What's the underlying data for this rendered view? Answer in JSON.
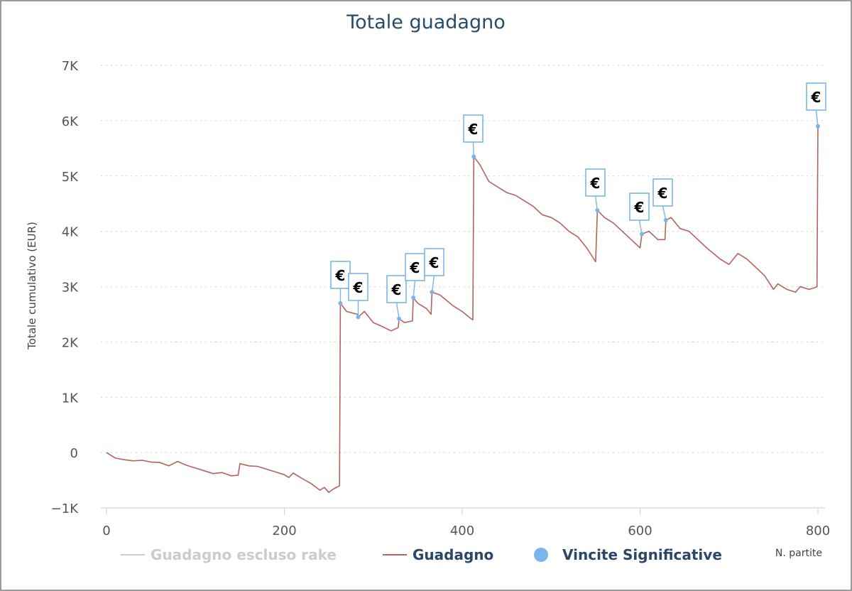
{
  "chart_data": {
    "type": "line",
    "title": "Totale guadagno",
    "xlabel": "N. partite",
    "ylabel": "Totale cumulativo (EUR)",
    "xlim": [
      0,
      800
    ],
    "ylim": [
      -1000,
      7000
    ],
    "x_ticks": [
      0,
      200,
      400,
      600,
      800
    ],
    "x_tick_labels": [
      "0",
      "200",
      "400",
      "600",
      "800"
    ],
    "y_ticks": [
      -1000,
      0,
      1000,
      2000,
      3000,
      4000,
      5000,
      6000,
      7000
    ],
    "y_tick_labels": [
      "−1K",
      "0",
      "1K",
      "2K",
      "3K",
      "4K",
      "5K",
      "6K",
      "7K"
    ],
    "grid": "horizontal dotted",
    "legend_position": "bottom",
    "legend": [
      {
        "label": "Guadagno escluso rake",
        "symbol": "line",
        "color": "#cccccc",
        "visible": false
      },
      {
        "label": "Guadagno",
        "symbol": "line",
        "color": "#b5625f",
        "visible": true
      },
      {
        "label": "Vincite Significative",
        "symbol": "circle",
        "color": "#7cb5ec",
        "visible": true
      }
    ],
    "series": [
      {
        "name": "Guadagno",
        "color": "#b5625f",
        "points": [
          [
            0,
            0
          ],
          [
            10,
            -100
          ],
          [
            20,
            -130
          ],
          [
            30,
            -150
          ],
          [
            40,
            -140
          ],
          [
            50,
            -170
          ],
          [
            60,
            -180
          ],
          [
            70,
            -240
          ],
          [
            75,
            -200
          ],
          [
            80,
            -160
          ],
          [
            90,
            -230
          ],
          [
            100,
            -280
          ],
          [
            110,
            -330
          ],
          [
            120,
            -380
          ],
          [
            130,
            -360
          ],
          [
            140,
            -420
          ],
          [
            148,
            -410
          ],
          [
            150,
            -200
          ],
          [
            160,
            -240
          ],
          [
            170,
            -250
          ],
          [
            180,
            -300
          ],
          [
            190,
            -350
          ],
          [
            200,
            -400
          ],
          [
            205,
            -450
          ],
          [
            210,
            -370
          ],
          [
            220,
            -470
          ],
          [
            230,
            -560
          ],
          [
            240,
            -680
          ],
          [
            245,
            -630
          ],
          [
            250,
            -720
          ],
          [
            255,
            -660
          ],
          [
            262,
            -600
          ],
          [
            263,
            2700
          ],
          [
            270,
            2550
          ],
          [
            282,
            2500
          ],
          [
            283,
            2450
          ],
          [
            290,
            2550
          ],
          [
            300,
            2350
          ],
          [
            310,
            2280
          ],
          [
            320,
            2200
          ],
          [
            328,
            2260
          ],
          [
            329,
            2420
          ],
          [
            335,
            2350
          ],
          [
            344,
            2380
          ],
          [
            345,
            2800
          ],
          [
            350,
            2700
          ],
          [
            360,
            2600
          ],
          [
            365,
            2500
          ],
          [
            366,
            2900
          ],
          [
            375,
            2850
          ],
          [
            390,
            2650
          ],
          [
            400,
            2550
          ],
          [
            410,
            2420
          ],
          [
            412,
            2400
          ],
          [
            413,
            5350
          ],
          [
            420,
            5200
          ],
          [
            430,
            4900
          ],
          [
            440,
            4800
          ],
          [
            450,
            4700
          ],
          [
            460,
            4650
          ],
          [
            470,
            4550
          ],
          [
            480,
            4450
          ],
          [
            490,
            4300
          ],
          [
            500,
            4250
          ],
          [
            510,
            4150
          ],
          [
            520,
            4000
          ],
          [
            530,
            3900
          ],
          [
            540,
            3700
          ],
          [
            550,
            3450
          ],
          [
            552,
            4380
          ],
          [
            560,
            4250
          ],
          [
            570,
            4150
          ],
          [
            580,
            4000
          ],
          [
            590,
            3850
          ],
          [
            600,
            3700
          ],
          [
            602,
            3950
          ],
          [
            610,
            4000
          ],
          [
            620,
            3850
          ],
          [
            628,
            3850
          ],
          [
            629,
            4200
          ],
          [
            635,
            4250
          ],
          [
            645,
            4050
          ],
          [
            655,
            4000
          ],
          [
            665,
            3850
          ],
          [
            675,
            3700
          ],
          [
            690,
            3500
          ],
          [
            700,
            3400
          ],
          [
            710,
            3600
          ],
          [
            720,
            3500
          ],
          [
            730,
            3350
          ],
          [
            740,
            3200
          ],
          [
            750,
            2950
          ],
          [
            755,
            3050
          ],
          [
            765,
            2950
          ],
          [
            775,
            2900
          ],
          [
            780,
            3000
          ],
          [
            790,
            2950
          ],
          [
            796,
            2980
          ],
          [
            799,
            3000
          ],
          [
            800,
            5900
          ]
        ]
      },
      {
        "name": "Vincite Significative",
        "color": "#7cb5ec",
        "points": [
          [
            263,
            2700
          ],
          [
            283,
            2450
          ],
          [
            329,
            2420
          ],
          [
            345,
            2800
          ],
          [
            366,
            2900
          ],
          [
            413,
            5350
          ],
          [
            552,
            4380
          ],
          [
            602,
            3950
          ],
          [
            629,
            4200
          ],
          [
            800,
            5900
          ]
        ],
        "marker_label": "€"
      }
    ]
  }
}
